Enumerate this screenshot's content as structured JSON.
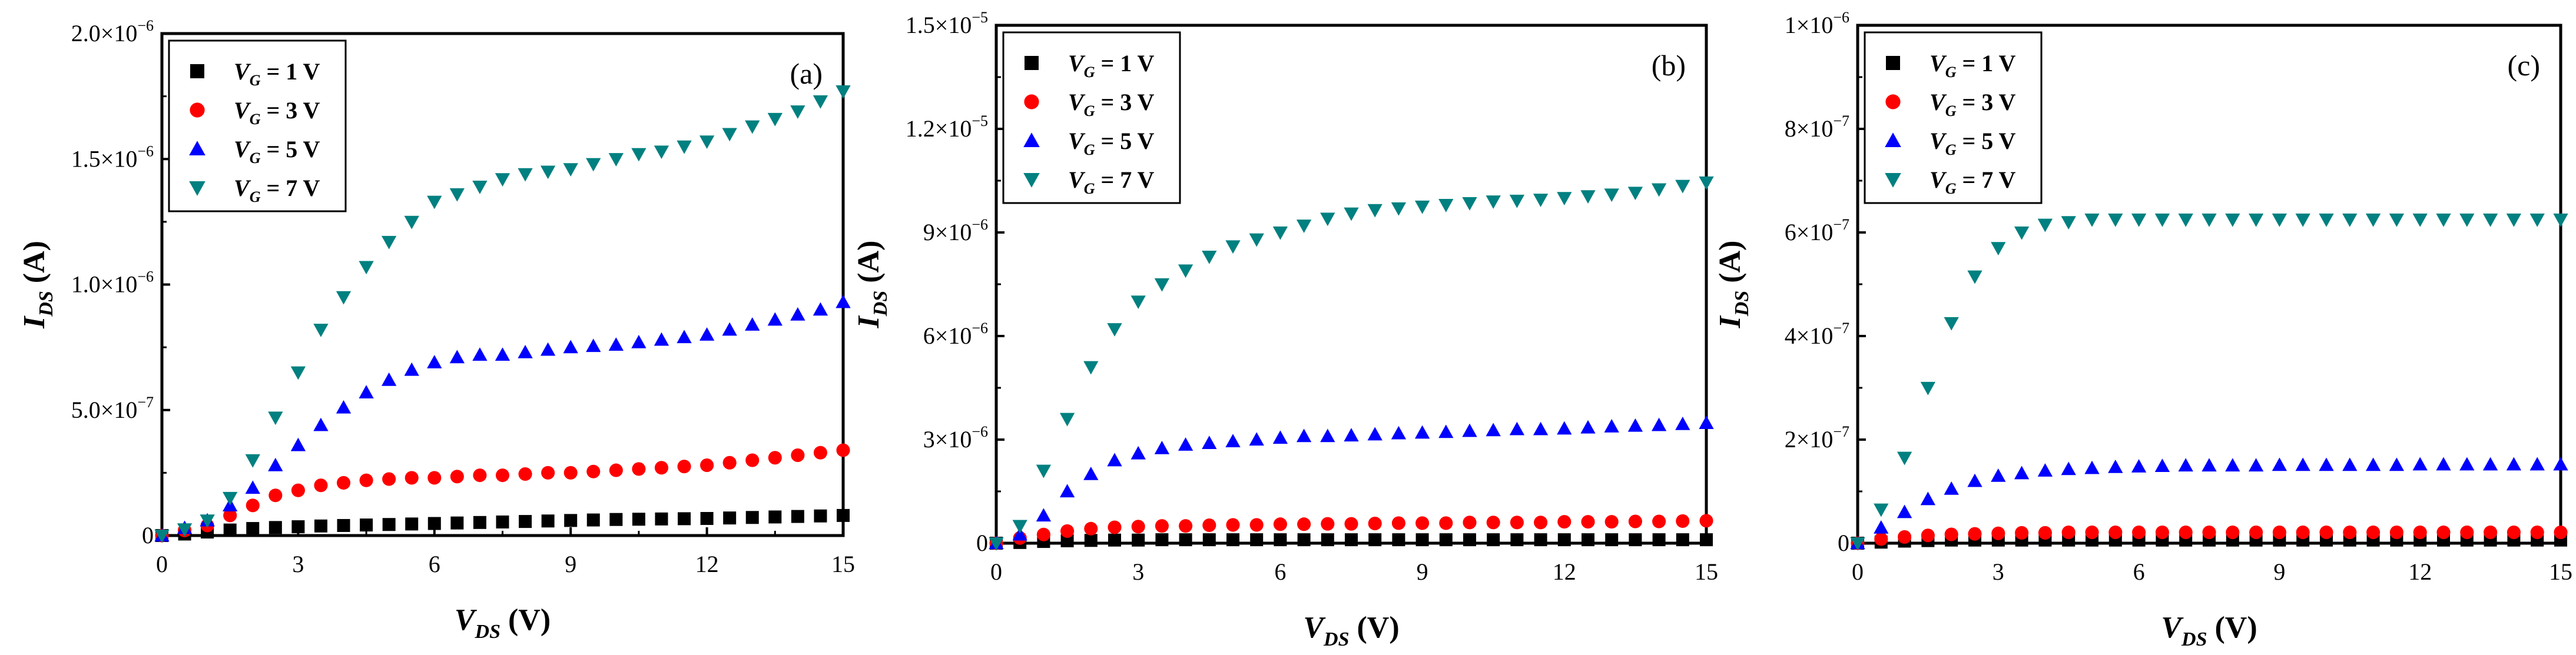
{
  "figure": {
    "shared": {
      "x": [
        0,
        0.5,
        1,
        1.5,
        2,
        2.5,
        3,
        3.5,
        4,
        4.5,
        5,
        5.5,
        6,
        6.5,
        7,
        7.5,
        8,
        8.5,
        9,
        9.5,
        10,
        10.5,
        11,
        11.5,
        12,
        12.5,
        13,
        13.5,
        14,
        14.5,
        15
      ],
      "xlabel_main": "V",
      "xlabel_sub": "DS",
      "xlabel_unit": " (V)",
      "ylabel_main": "I",
      "ylabel_sub": "DS",
      "ylabel_unit": " (A)",
      "xticks": [
        "0",
        "3",
        "6",
        "9",
        "12",
        "15"
      ],
      "legend_labels": [
        {
          "sub": "G",
          "text": " = 1 V"
        },
        {
          "sub": "G",
          "text": " = 3 V"
        },
        {
          "sub": "G",
          "text": " = 5 V"
        },
        {
          "sub": "G",
          "text": " = 7 V"
        }
      ],
      "legend_prefix": "V",
      "colors": [
        "#000000",
        "#ff0000",
        "#0000ff",
        "#008080"
      ],
      "markers": [
        "square",
        "circle",
        "triangle-up",
        "triangle-down"
      ]
    }
  },
  "chart_data": [
    {
      "type": "scatter",
      "panel_label": "(a)",
      "xlabel": "VDS (V)",
      "ylabel": "IDS (A)",
      "xlim": [
        0,
        15
      ],
      "ylim": [
        0,
        2e-06
      ],
      "yticks": [
        {
          "v": 0,
          "m": "0",
          "e": ""
        },
        {
          "v": 5e-07,
          "m": "5.0×10",
          "e": "−7"
        },
        {
          "v": 1e-06,
          "m": "1.0×10",
          "e": "−6"
        },
        {
          "v": 1.5e-06,
          "m": "1.5×10",
          "e": "−6"
        },
        {
          "v": 2e-06,
          "m": "2.0×10",
          "e": "−6"
        }
      ],
      "legend_position": "top-left",
      "series": [
        {
          "name": "VG = 1 V",
          "values": [
            0,
            6e-09,
            1.4e-08,
            2.2e-08,
            2.8e-08,
            3.2e-08,
            3.5e-08,
            3.8e-08,
            4e-08,
            4.2e-08,
            4.4e-08,
            4.6e-08,
            4.8e-08,
            5e-08,
            5.2e-08,
            5.4e-08,
            5.6e-08,
            5.8e-08,
            6e-08,
            6.2e-08,
            6.4e-08,
            6.5e-08,
            6.6e-08,
            6.7e-08,
            6.8e-08,
            7e-08,
            7.2e-08,
            7.4e-08,
            7.6e-08,
            7.8e-08,
            8e-08
          ]
        },
        {
          "name": "VG = 3 V",
          "values": [
            0,
            2e-08,
            4e-08,
            8e-08,
            1.2e-07,
            1.6e-07,
            1.8e-07,
            2e-07,
            2.1e-07,
            2.2e-07,
            2.25e-07,
            2.3e-07,
            2.3e-07,
            2.35e-07,
            2.4e-07,
            2.4e-07,
            2.45e-07,
            2.5e-07,
            2.5e-07,
            2.55e-07,
            2.6e-07,
            2.65e-07,
            2.7e-07,
            2.75e-07,
            2.8e-07,
            2.9e-07,
            3e-07,
            3.1e-07,
            3.2e-07,
            3.3e-07,
            3.4e-07
          ]
        },
        {
          "name": "VG = 5 V",
          "values": [
            0,
            3e-08,
            6e-08,
            1.2e-07,
            1.9e-07,
            2.8e-07,
            3.6e-07,
            4.4e-07,
            5.1e-07,
            5.7e-07,
            6.2e-07,
            6.6e-07,
            6.9e-07,
            7.1e-07,
            7.2e-07,
            7.2e-07,
            7.3e-07,
            7.4e-07,
            7.5e-07,
            7.55e-07,
            7.6e-07,
            7.7e-07,
            7.8e-07,
            7.9e-07,
            8e-07,
            8.2e-07,
            8.4e-07,
            8.6e-07,
            8.8e-07,
            9e-07,
            9.3e-07
          ]
        },
        {
          "name": "VG = 7 V",
          "values": [
            0,
            2.5e-08,
            6e-08,
            1.5e-07,
            3e-07,
            4.7e-07,
            6.5e-07,
            8.2e-07,
            9.5e-07,
            1.07e-06,
            1.17e-06,
            1.25e-06,
            1.33e-06,
            1.36e-06,
            1.39e-06,
            1.42e-06,
            1.44e-06,
            1.45e-06,
            1.46e-06,
            1.48e-06,
            1.5e-06,
            1.52e-06,
            1.53e-06,
            1.55e-06,
            1.57e-06,
            1.6e-06,
            1.63e-06,
            1.66e-06,
            1.69e-06,
            1.73e-06,
            1.77e-06
          ]
        }
      ]
    },
    {
      "type": "scatter",
      "panel_label": "(b)",
      "xlabel": "VDS (V)",
      "ylabel": "IDS (A)",
      "xlim": [
        0,
        15
      ],
      "ylim": [
        0,
        1.5e-05
      ],
      "yticks": [
        {
          "v": 0,
          "m": "0",
          "e": ""
        },
        {
          "v": 3e-06,
          "m": "3×10",
          "e": "−6"
        },
        {
          "v": 6e-06,
          "m": "6×10",
          "e": "−6"
        },
        {
          "v": 9e-06,
          "m": "9×10",
          "e": "−6"
        },
        {
          "v": 1.2e-05,
          "m": "1.2×10",
          "e": "−5"
        },
        {
          "v": 1.5e-05,
          "m": "1.5×10",
          "e": "−5"
        }
      ],
      "legend_position": "top-left",
      "series": [
        {
          "name": "VG = 1 V",
          "values": [
            0,
            2e-08,
            5e-08,
            7e-08,
            8e-08,
            9e-08,
            9e-08,
            1e-07,
            1e-07,
            1e-07,
            1e-07,
            1e-07,
            1e-07,
            1e-07,
            1e-07,
            1e-07,
            1e-07,
            1e-07,
            1e-07,
            1e-07,
            1e-07,
            1e-07,
            1e-07,
            1e-07,
            1e-07,
            1e-07,
            1e-07,
            1e-07,
            1e-07,
            1e-07,
            1e-07
          ]
        },
        {
          "name": "VG = 3 V",
          "values": [
            0,
            1.5e-07,
            2.5e-07,
            3.5e-07,
            4.2e-07,
            4.6e-07,
            4.8e-07,
            5e-07,
            5e-07,
            5.2e-07,
            5.3e-07,
            5.3e-07,
            5.5e-07,
            5.5e-07,
            5.6e-07,
            5.6e-07,
            5.7e-07,
            5.8e-07,
            5.8e-07,
            5.8e-07,
            6e-07,
            6e-07,
            6e-07,
            6e-07,
            6.2e-07,
            6.2e-07,
            6.2e-07,
            6.3e-07,
            6.3e-07,
            6.4e-07,
            6.5e-07
          ]
        },
        {
          "name": "VG = 5 V",
          "values": [
            0,
            2.5e-07,
            8e-07,
            1.5e-06,
            2e-06,
            2.4e-06,
            2.6e-06,
            2.75e-06,
            2.85e-06,
            2.9e-06,
            2.95e-06,
            3e-06,
            3.05e-06,
            3.1e-06,
            3.1e-06,
            3.12e-06,
            3.15e-06,
            3.18e-06,
            3.2e-06,
            3.22e-06,
            3.25e-06,
            3.27e-06,
            3.3e-06,
            3.3e-06,
            3.32e-06,
            3.35e-06,
            3.38e-06,
            3.4e-06,
            3.42e-06,
            3.45e-06,
            3.48e-06
          ]
        },
        {
          "name": "VG = 7 V",
          "values": [
            0,
            5e-07,
            2.1e-06,
            3.6e-06,
            5.1e-06,
            6.2e-06,
            7e-06,
            7.5e-06,
            7.9e-06,
            8.3e-06,
            8.6e-06,
            8.8e-06,
            9e-06,
            9.2e-06,
            9.4e-06,
            9.55e-06,
            9.65e-06,
            9.7e-06,
            9.75e-06,
            9.8e-06,
            9.85e-06,
            9.9e-06,
            9.92e-06,
            9.95e-06,
            1e-05,
            1.005e-05,
            1.01e-05,
            1.015e-05,
            1.025e-05,
            1.035e-05,
            1.045e-05
          ]
        }
      ]
    },
    {
      "type": "scatter",
      "panel_label": "(c)",
      "xlabel": "VDS (V)",
      "ylabel": "IDS (A)",
      "xlim": [
        0,
        15
      ],
      "ylim": [
        0,
        1e-06
      ],
      "yticks": [
        {
          "v": 0,
          "m": "0",
          "e": ""
        },
        {
          "v": 2e-07,
          "m": "2×10",
          "e": "−7"
        },
        {
          "v": 4e-07,
          "m": "4×10",
          "e": "−7"
        },
        {
          "v": 6e-07,
          "m": "6×10",
          "e": "−7"
        },
        {
          "v": 8e-07,
          "m": "8×10",
          "e": "−7"
        },
        {
          "v": 1e-06,
          "m": "1×10",
          "e": "−6"
        }
      ],
      "legend_position": "top-left",
      "series": [
        {
          "name": "VG = 1 V",
          "values": [
            0,
            2e-09,
            4e-09,
            5e-09,
            6e-09,
            6e-09,
            6e-09,
            6e-09,
            6e-09,
            6e-09,
            6e-09,
            6e-09,
            6e-09,
            6e-09,
            6e-09,
            6e-09,
            6e-09,
            6e-09,
            6e-09,
            6e-09,
            6e-09,
            6e-09,
            6e-09,
            6e-09,
            6e-09,
            6e-09,
            6e-09,
            6e-09,
            6e-09,
            6e-09,
            6e-09
          ]
        },
        {
          "name": "VG = 3 V",
          "values": [
            0,
            8e-09,
            1.2e-08,
            1.5e-08,
            1.7e-08,
            1.8e-08,
            1.9e-08,
            2e-08,
            2e-08,
            2.1e-08,
            2.1e-08,
            2.1e-08,
            2.1e-08,
            2.1e-08,
            2.1e-08,
            2.1e-08,
            2.1e-08,
            2.1e-08,
            2.1e-08,
            2.1e-08,
            2.1e-08,
            2.1e-08,
            2.1e-08,
            2.1e-08,
            2.1e-08,
            2.1e-08,
            2.1e-08,
            2.1e-08,
            2.1e-08,
            2.1e-08,
            2.1e-08
          ]
        },
        {
          "name": "VG = 5 V",
          "values": [
            0,
            3e-08,
            6e-08,
            8.5e-08,
            1.05e-07,
            1.2e-07,
            1.3e-07,
            1.35e-07,
            1.4e-07,
            1.43e-07,
            1.45e-07,
            1.47e-07,
            1.48e-07,
            1.49e-07,
            1.5e-07,
            1.5e-07,
            1.5e-07,
            1.5e-07,
            1.51e-07,
            1.51e-07,
            1.51e-07,
            1.51e-07,
            1.51e-07,
            1.51e-07,
            1.52e-07,
            1.52e-07,
            1.52e-07,
            1.52e-07,
            1.52e-07,
            1.52e-07,
            1.52e-07
          ]
        },
        {
          "name": "VG = 7 V",
          "values": [
            0,
            6.5e-08,
            1.65e-07,
            3e-07,
            4.25e-07,
            5.15e-07,
            5.7e-07,
            6e-07,
            6.15e-07,
            6.2e-07,
            6.25e-07,
            6.25e-07,
            6.25e-07,
            6.25e-07,
            6.25e-07,
            6.25e-07,
            6.25e-07,
            6.25e-07,
            6.25e-07,
            6.25e-07,
            6.25e-07,
            6.25e-07,
            6.25e-07,
            6.25e-07,
            6.25e-07,
            6.25e-07,
            6.25e-07,
            6.25e-07,
            6.25e-07,
            6.25e-07,
            6.25e-07
          ]
        }
      ]
    }
  ]
}
